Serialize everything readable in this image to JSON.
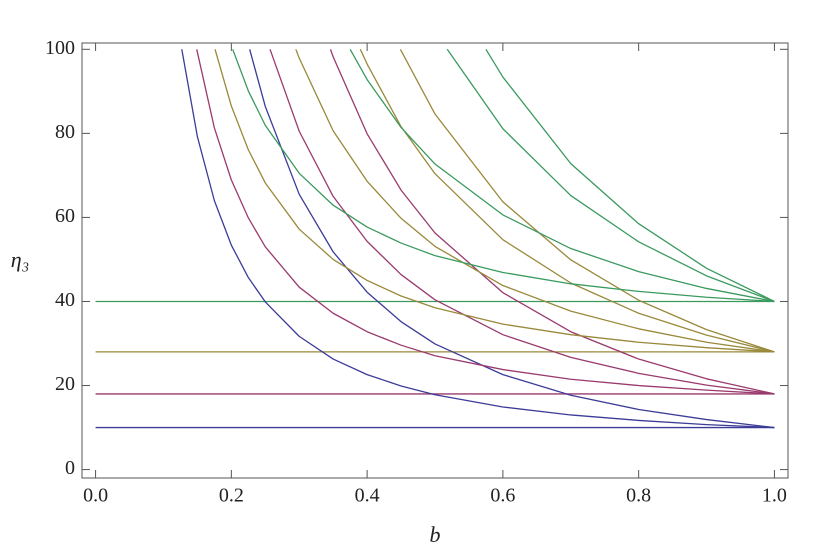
{
  "chart_data": {
    "type": "line",
    "xlabel": "b",
    "ylabel": "η₃",
    "xlim": [
      -0.02,
      1.02
    ],
    "ylim": [
      -2,
      101.5
    ],
    "xticks": [
      {
        "value": 0,
        "label": "0.0"
      },
      0.2,
      0.4,
      0.6,
      0.8,
      {
        "value": 1,
        "label": "1.0"
      }
    ],
    "yticks": [
      0,
      20,
      40,
      60,
      80,
      100
    ],
    "series": [
      {
        "color": "#3c3c98",
        "x": [
          0,
          1
        ],
        "values": [
          10,
          10
        ]
      },
      {
        "color": "#9a3a6e",
        "x": [
          0,
          1
        ],
        "values": [
          18,
          18
        ]
      },
      {
        "color": "#99893a",
        "x": [
          0,
          1
        ],
        "values": [
          28,
          28
        ]
      },
      {
        "color": "#3a9a5e",
        "x": [
          0,
          1
        ],
        "values": [
          40,
          40
        ]
      },
      {
        "color": "#3c3c98",
        "x": [
          0.127,
          0.15,
          0.175,
          0.2,
          0.225,
          0.25,
          0.3,
          0.35,
          0.4,
          0.45,
          0.5,
          0.6,
          0.7,
          0.8,
          0.9,
          1.0
        ],
        "values": [
          100,
          79.2,
          64.0,
          53.4,
          45.7,
          39.9,
          31.7,
          26.3,
          22.6,
          19.9,
          17.8,
          14.9,
          13.0,
          11.7,
          10.7,
          10
        ]
      },
      {
        "color": "#3c3c98",
        "x": [
          0.227,
          0.25,
          0.3,
          0.35,
          0.4,
          0.45,
          0.5,
          0.6,
          0.7,
          0.8,
          0.9,
          1.0
        ],
        "values": [
          100,
          86.4,
          65.5,
          51.8,
          42.2,
          35.2,
          29.9,
          22.6,
          17.7,
          14.3,
          11.9,
          10
        ]
      },
      {
        "color": "#9a3a6e",
        "x": [
          0.149,
          0.175,
          0.2,
          0.225,
          0.25,
          0.3,
          0.35,
          0.4,
          0.45,
          0.5,
          0.6,
          0.7,
          0.8,
          0.9,
          1.0
        ],
        "values": [
          100,
          81.3,
          68.9,
          59.9,
          53.0,
          43.4,
          37.2,
          32.8,
          29.6,
          27.1,
          23.8,
          21.5,
          20.0,
          18.9,
          18
        ]
      },
      {
        "color": "#9a3a6e",
        "x": [
          0.257,
          0.3,
          0.35,
          0.4,
          0.45,
          0.5,
          0.6,
          0.7,
          0.8,
          0.9,
          1.0
        ],
        "values": [
          100,
          80.5,
          65.0,
          54.3,
          46.4,
          40.4,
          32.1,
          26.7,
          22.9,
          20.1,
          18
        ]
      },
      {
        "color": "#9a3a6e",
        "x": [
          0.346,
          0.35,
          0.4,
          0.45,
          0.5,
          0.6,
          0.7,
          0.8,
          0.9,
          1.0
        ],
        "values": [
          100,
          98.2,
          79.9,
          66.5,
          56.3,
          42.1,
          32.8,
          26.3,
          21.6,
          18
        ]
      },
      {
        "color": "#99893a",
        "x": [
          0.176,
          0.2,
          0.225,
          0.25,
          0.3,
          0.35,
          0.4,
          0.45,
          0.5,
          0.6,
          0.7,
          0.8,
          0.9,
          1.0
        ],
        "values": [
          100,
          86.5,
          76.1,
          68.2,
          57.2,
          50.0,
          45.0,
          41.3,
          38.5,
          34.6,
          32.1,
          30.3,
          29.0,
          28
        ]
      },
      {
        "color": "#99893a",
        "x": [
          0.295,
          0.3,
          0.35,
          0.4,
          0.45,
          0.5,
          0.6,
          0.7,
          0.8,
          0.9,
          1.0
        ],
        "values": [
          100,
          97.9,
          80.6,
          68.6,
          59.8,
          53.1,
          43.8,
          37.7,
          33.5,
          30.3,
          28
        ]
      },
      {
        "color": "#99893a",
        "x": [
          0.39,
          0.4,
          0.45,
          0.5,
          0.6,
          0.7,
          0.8,
          0.9,
          1.0
        ],
        "values": [
          100,
          96.5,
          81.6,
          70.4,
          54.7,
          44.4,
          37.2,
          32.0,
          28
        ]
      },
      {
        "color": "#99893a",
        "x": [
          0.449,
          0.5,
          0.6,
          0.7,
          0.8,
          0.9,
          1.0
        ],
        "values": [
          100,
          84.6,
          63.7,
          49.9,
          40.3,
          33.3,
          28
        ]
      },
      {
        "color": "#3a9a5e",
        "x": [
          0.202,
          0.225,
          0.25,
          0.3,
          0.35,
          0.4,
          0.45,
          0.5,
          0.6,
          0.7,
          0.8,
          0.9,
          1.0
        ],
        "values": [
          100,
          90.1,
          81.9,
          70.5,
          62.9,
          57.7,
          53.9,
          50.9,
          46.9,
          44.2,
          42.4,
          41.0,
          40
        ]
      },
      {
        "color": "#3a9a5e",
        "x": [
          0.375,
          0.4,
          0.45,
          0.5,
          0.6,
          0.7,
          0.8,
          0.9,
          1.0
        ],
        "values": [
          100,
          92.8,
          81.4,
          72.7,
          60.6,
          52.6,
          47.1,
          43.1,
          40
        ]
      },
      {
        "color": "#3a9a5e",
        "x": [
          0.518,
          0.6,
          0.7,
          0.8,
          0.9,
          1.0
        ],
        "values": [
          100,
          81.1,
          65.2,
          54.2,
          46.1,
          40
        ]
      },
      {
        "color": "#3a9a5e",
        "x": [
          0.575,
          0.6,
          0.7,
          0.8,
          0.9,
          1.0
        ],
        "values": [
          100,
          93.4,
          72.8,
          58.5,
          47.9,
          40
        ]
      }
    ]
  }
}
